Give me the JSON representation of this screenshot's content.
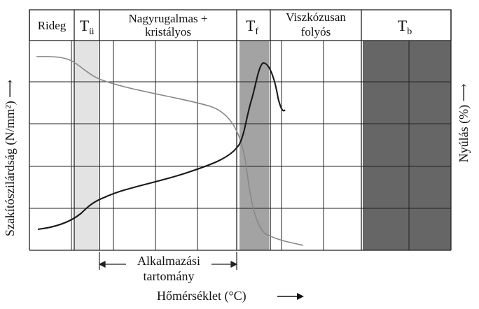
{
  "header": {
    "rideg": "Rideg",
    "tu_main": "T",
    "tu_sub": "ü",
    "nagyrugalmas_line1": "Nagyrugalmas +",
    "nagyrugalmas_line2": "kristályos",
    "tf_main": "T",
    "tf_sub": "f",
    "viszko_line1": "Viszkózusan",
    "viszko_line2": "folyós",
    "tb_main": "T",
    "tb_sub": "b"
  },
  "axes": {
    "left_label": "Szakítószilárdság (N/mm²) ⟶",
    "right_label": "Nyúlás (%) ⟶",
    "bottom_label": "Hőmérséklet (°C)"
  },
  "range": {
    "line1": "Alkalmazási",
    "line2": "tartomány"
  },
  "colors": {
    "tu_band": "#e3e3e3",
    "tf_band": "#a3a3a3",
    "tb_band": "#666666",
    "strength_curve": "#888888",
    "elongation_curve": "#1a1a1a"
  }
}
